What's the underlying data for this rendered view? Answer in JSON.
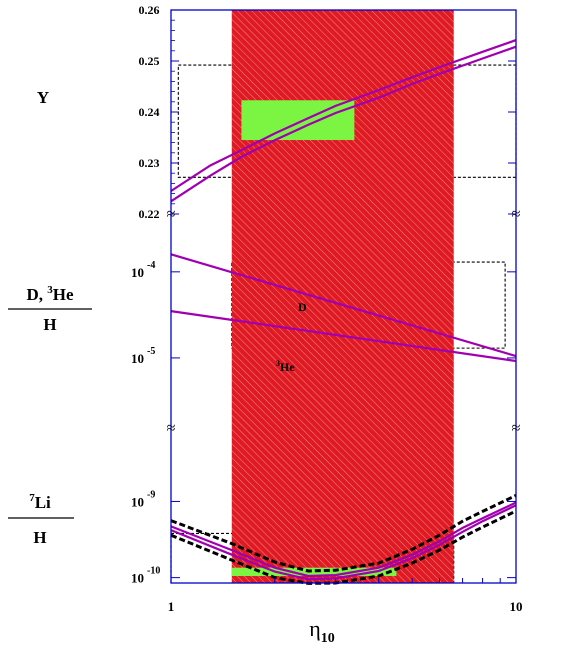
{
  "chart_data": {
    "type": "line",
    "x": {
      "label": "η",
      "label_sub": "10",
      "scale": "log",
      "range": [
        1,
        10
      ],
      "tick_labels": [
        "1",
        "10"
      ]
    },
    "colors": {
      "curve": "#a000b0",
      "band": "#e01a22",
      "observed_box": "#7cf542",
      "frame": "#0000c8",
      "dashed": "#000000"
    },
    "band": {
      "x_range": [
        1.5,
        6.6
      ],
      "description_color": "#e01a22"
    },
    "panels": [
      {
        "id": "helium",
        "ylabel": "Y",
        "scale": "linear",
        "ylim": [
          0.22,
          0.26
        ],
        "ytick_labels": [
          "0.22",
          "0.23",
          "0.24",
          "0.25",
          "0.26"
        ],
        "series": [
          {
            "x": [
              1,
              1.3,
              1.6,
              2,
              2.5,
              3,
              4,
              5,
              6,
              8,
              10
            ],
            "y": [
              0.2225,
              0.2275,
              0.2312,
              0.2345,
              0.2375,
              0.2398,
              0.2428,
              0.2455,
              0.2475,
              0.2505,
              0.2528
            ]
          },
          {
            "x": [
              1,
              1.3,
              1.6,
              2,
              2.5,
              3,
              4,
              5,
              6,
              8,
              10
            ],
            "y": [
              0.2245,
              0.2295,
              0.2325,
              0.2358,
              0.2388,
              0.2412,
              0.2443,
              0.2468,
              0.2488,
              0.2518,
              0.2541
            ]
          }
        ],
        "observed_box": {
          "x": [
            1.6,
            3.4
          ],
          "y": [
            0.2345,
            0.2423
          ]
        },
        "dashed_box": {
          "x": [
            1.05,
            10
          ],
          "y": [
            0.2272,
            0.2492
          ]
        }
      },
      {
        "id": "deuterium-helium3",
        "ylabel": "D,  3He / H",
        "scale": "log",
        "ylim": [
          8.5e-06,
          0.00017
        ],
        "ytick_labels": [
          "10 -5",
          "10 -4"
        ],
        "curve_labels": [
          "D",
          "3He"
        ],
        "series": [
          {
            "name": "D",
            "x": [
              1,
              10
            ],
            "y": [
              0.00016,
              1.05e-05
            ]
          },
          {
            "name": "3He",
            "x": [
              1,
              10
            ],
            "y": [
              3.5e-05,
              9.2e-06
            ]
          }
        ],
        "dashed_box": {
          "x": [
            1.5,
            9.3
          ],
          "y": [
            1.3e-05,
            0.00013
          ]
        }
      },
      {
        "id": "lithium7",
        "ylabel": "7Li / H",
        "scale": "log",
        "ylim": [
          8.5e-11,
          1.8e-09
        ],
        "ytick_labels": [
          "10 -10",
          "10 -9"
        ],
        "series": [
          {
            "x": [
              1,
              1.5,
              2,
              2.5,
              3,
              4,
              5,
              6,
              7,
              8,
              10
            ],
            "y": [
              4.7e-10,
              2.3e-10,
              1.35e-10,
              1.05e-10,
              1.08e-10,
              1.35e-10,
              2e-10,
              3e-10,
              4.5e-10,
              6e-10,
              9.7e-10
            ]
          },
          {
            "x": [
              1,
              1.5,
              2,
              2.5,
              3,
              4,
              5,
              6,
              7,
              8,
              10
            ],
            "y": [
              4.2e-10,
              2e-10,
              1.2e-10,
              9.5e-11,
              9.8e-11,
              1.22e-10,
              1.8e-10,
              2.7e-10,
              4e-10,
              5.5e-10,
              8.9e-10
            ]
          }
        ],
        "dashed_series": [
          {
            "x": [
              1,
              1.5,
              2,
              2.5,
              3,
              4,
              5,
              6,
              7,
              8,
              10
            ],
            "y": [
              5.6e-10,
              2.8e-10,
              1.6e-10,
              1.22e-10,
              1.25e-10,
              1.55e-10,
              2.35e-10,
              3.6e-10,
              5.5e-10,
              7.4e-10,
              1.2e-09
            ]
          },
          {
            "x": [
              1,
              1.5,
              2,
              2.5,
              3,
              4,
              5,
              6,
              7,
              8,
              10
            ],
            "y": [
              3.6e-10,
              1.7e-10,
              1e-10,
              8.4e-11,
              8.5e-11,
              1.05e-10,
              1.55e-10,
              2.3e-10,
              3.4e-10,
              4.6e-10,
              7.5e-10
            ]
          }
        ],
        "observed_box": {
          "x": [
            1.5,
            4.5
          ],
          "y": [
            1.05e-10,
            1.35e-10
          ]
        },
        "dashed_box": {
          "x": [
            1,
            6.6
          ],
          "y": [
            8.5e-11,
            3.8e-10
          ]
        }
      }
    ]
  }
}
